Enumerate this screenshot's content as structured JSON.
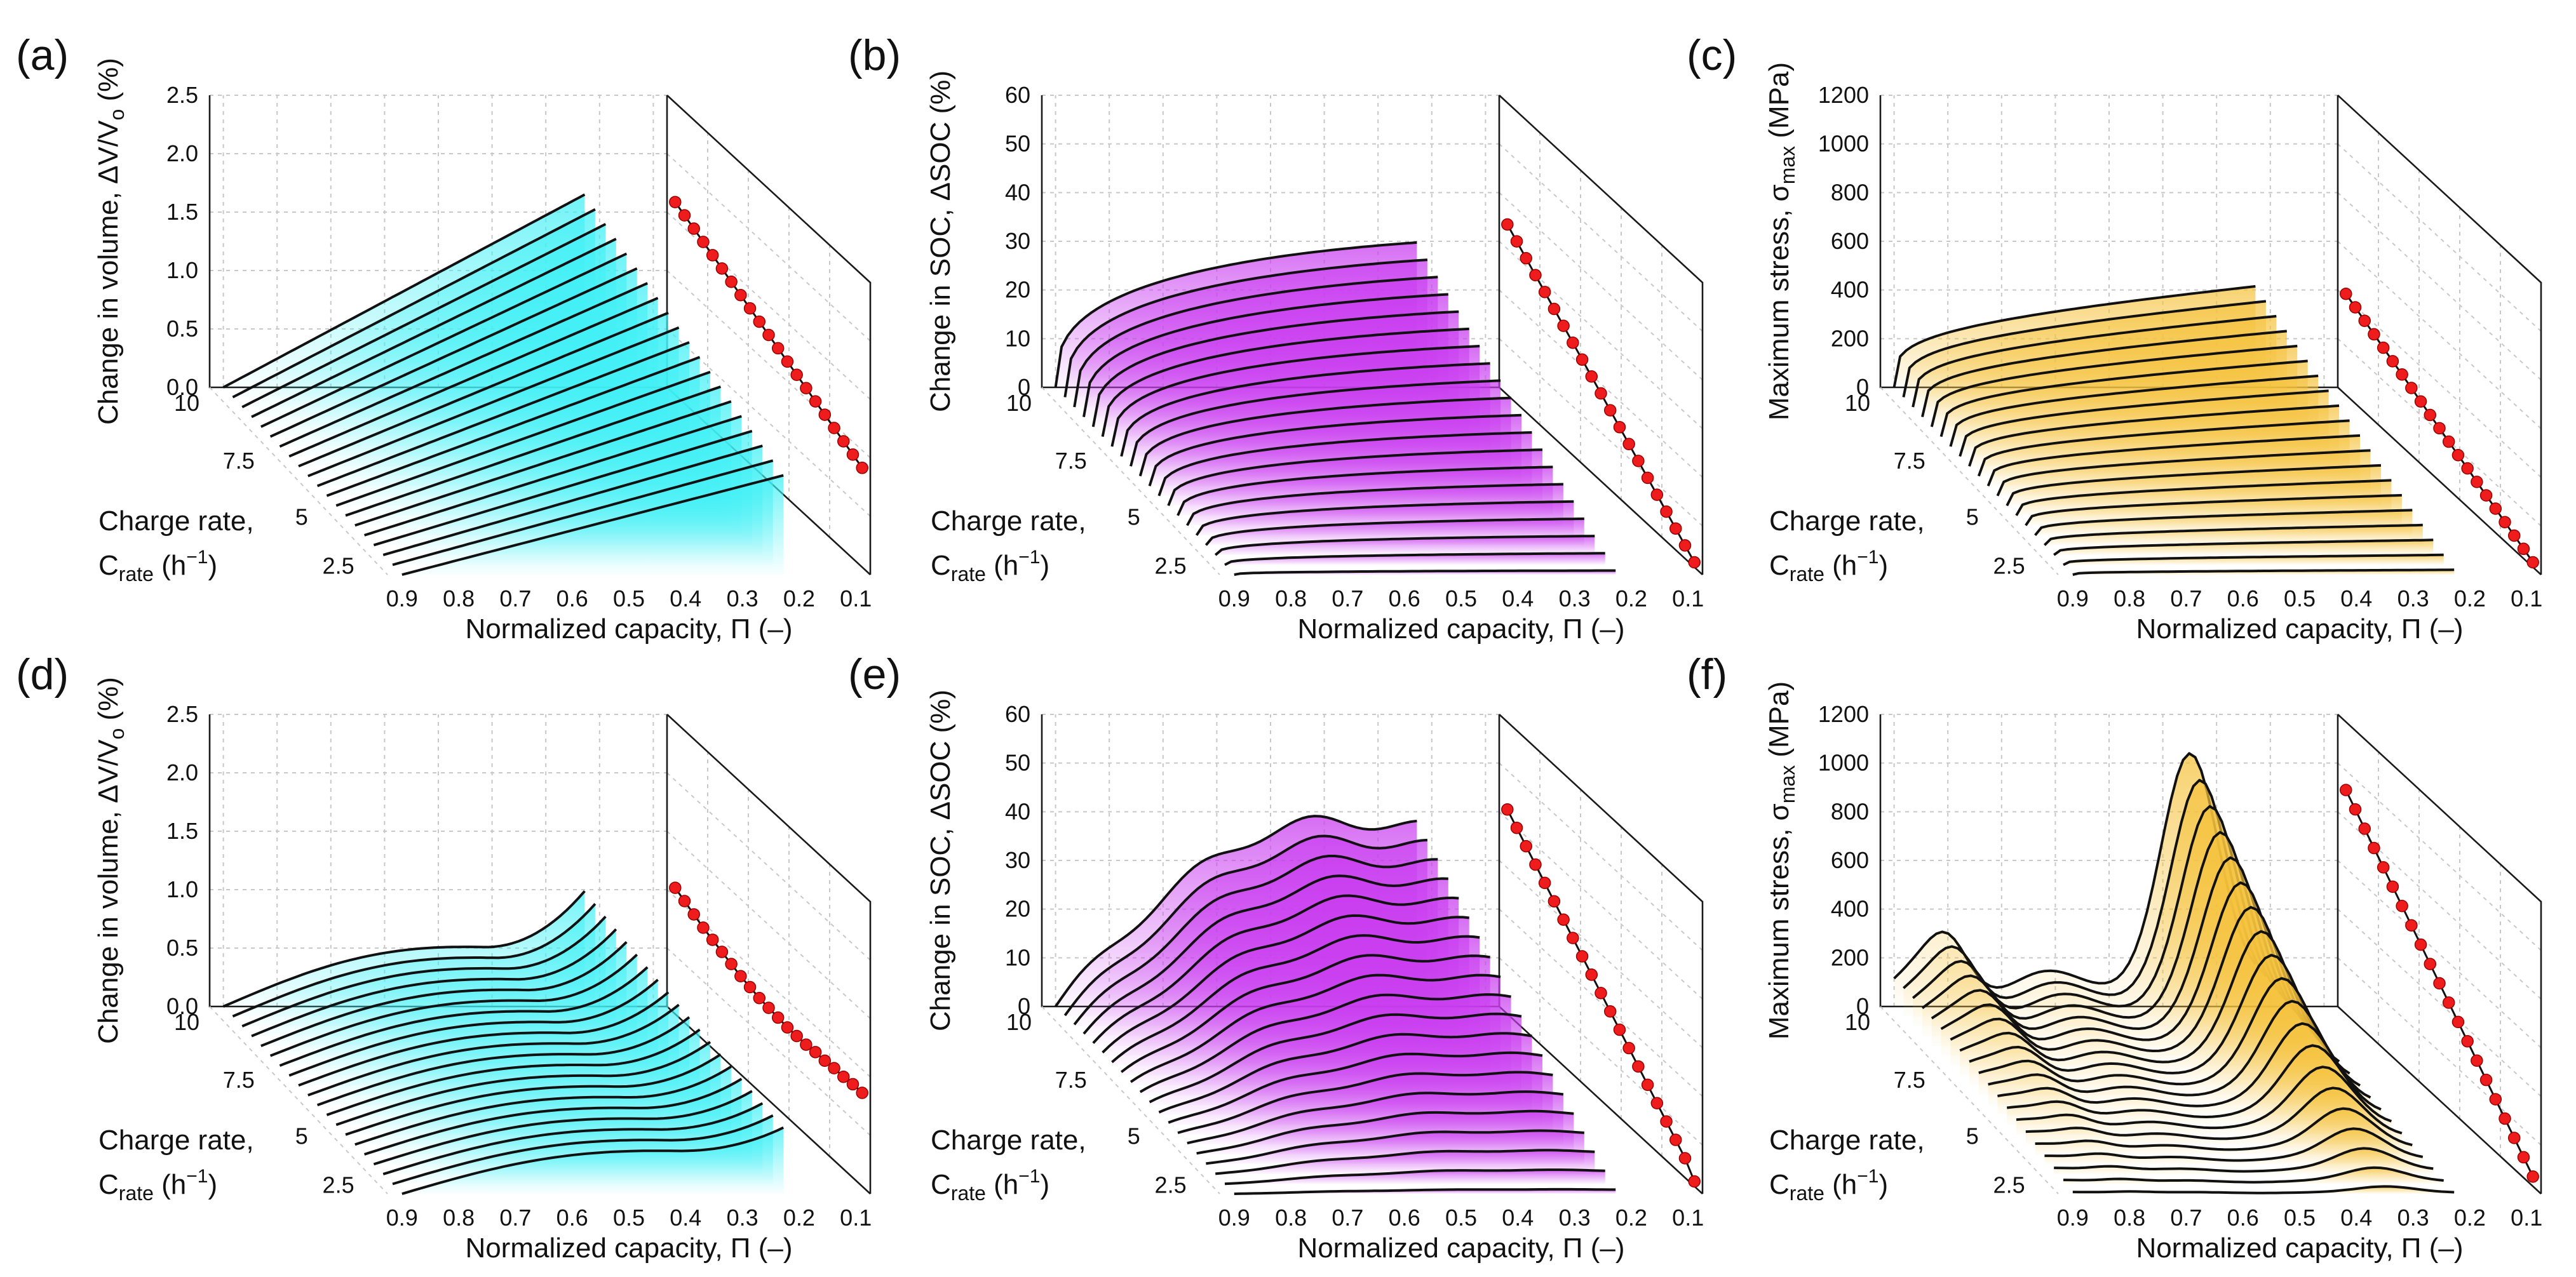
{
  "chart_data": [
    {
      "id": "a",
      "label": "(a)",
      "type": "surface3d",
      "zlabel": "Change in volume, ΔV/V",
      "zlabel_sub": "o",
      "zlabel_tail": " (%)",
      "zticks": [
        "0.0",
        "0.5",
        "1.0",
        "1.5",
        "2.0",
        "2.5"
      ],
      "zlim": [
        0,
        2.5
      ],
      "xlabel": "Normalized capacity, Π (–)",
      "xticks": [
        "0.9",
        "0.8",
        "0.7",
        "0.6",
        "0.5",
        "0.4",
        "0.3",
        "0.2",
        "0.1"
      ],
      "ylabel_line1": "Charge rate,",
      "ylabel_line2_main": "C",
      "ylabel_line2_sub": "rate",
      "ylabel_line2_tail": " (h",
      "ylabel_line2_sup": "−1",
      "ylabel_line2_end": ")",
      "yticks": [
        "10",
        "7.5",
        "5",
        "2.5"
      ],
      "fill": "#3ff0f5",
      "profile": "linear",
      "amplitude": [
        1.65,
        0.85
      ],
      "proj_values": [
        1.65,
        1.61,
        1.57,
        1.53,
        1.49,
        1.45,
        1.41,
        1.37,
        1.33,
        1.29,
        1.25,
        1.21,
        1.17,
        1.13,
        1.09,
        1.05,
        1.01,
        0.97,
        0.93,
        0.89,
        0.85
      ]
    },
    {
      "id": "b",
      "label": "(b)",
      "type": "surface3d",
      "zlabel": "Change in SOC, ΔSOC (%)",
      "zlabel_sub": "",
      "zlabel_tail": "",
      "zticks": [
        "0",
        "10",
        "20",
        "30",
        "40",
        "50",
        "60"
      ],
      "zlim": [
        0,
        60
      ],
      "xlabel": "Normalized capacity, Π (–)",
      "xticks": [
        "0.9",
        "0.8",
        "0.7",
        "0.6",
        "0.5",
        "0.4",
        "0.3",
        "0.2",
        "0.1"
      ],
      "ylabel_line1": "Charge rate,",
      "ylabel_line2_main": "C",
      "ylabel_line2_sub": "rate",
      "ylabel_line2_tail": " (h",
      "ylabel_line2_sup": "−1",
      "ylabel_line2_end": ")",
      "yticks": [
        "10",
        "7.5",
        "5",
        "2.5"
      ],
      "fill": "#c93cf0",
      "profile": "soc",
      "amplitude": [
        35,
        1
      ],
      "proj_values": [
        35,
        33.3,
        31.6,
        29.9,
        28.2,
        26.5,
        24.8,
        23.1,
        21.4,
        19.7,
        18,
        16.3,
        14.6,
        12.9,
        11.2,
        9.5,
        7.8,
        6.1,
        4.4,
        2.7,
        1
      ]
    },
    {
      "id": "c",
      "label": "(c)",
      "type": "surface3d",
      "zlabel": "Maximum stress, σ",
      "zlabel_sub": "max",
      "zlabel_tail": " (MPa)",
      "zticks": [
        "0",
        "200",
        "400",
        "600",
        "800",
        "1000",
        "1200"
      ],
      "zlim": [
        0,
        1200
      ],
      "xlabel": "Normalized capacity, Π (–)",
      "xticks": [
        "0.9",
        "0.8",
        "0.7",
        "0.6",
        "0.5",
        "0.4",
        "0.3",
        "0.2",
        "0.1"
      ],
      "ylabel_line1": "Charge rate,",
      "ylabel_line2_main": "C",
      "ylabel_line2_sub": "rate",
      "ylabel_line2_tail": " (h",
      "ylabel_line2_sup": "−1",
      "ylabel_line2_end": ")",
      "yticks": [
        "10",
        "7.5",
        "5",
        "2.5"
      ],
      "fill": "#f5c23c",
      "profile": "stress_mono",
      "amplitude": [
        415,
        20
      ],
      "proj_values": [
        415,
        395,
        375,
        355,
        335,
        315,
        296,
        276,
        256,
        236,
        217,
        197,
        177,
        158,
        138,
        118,
        99,
        79,
        59,
        40,
        20
      ]
    },
    {
      "id": "d",
      "label": "(d)",
      "type": "surface3d",
      "zlabel": "Change in volume, ΔV/V",
      "zlabel_sub": "o",
      "zlabel_tail": " (%)",
      "zticks": [
        "0.0",
        "0.5",
        "1.0",
        "1.5",
        "2.0",
        "2.5"
      ],
      "zlim": [
        0,
        2.5
      ],
      "xlabel": "Normalized capacity, Π (–)",
      "xticks": [
        "0.9",
        "0.8",
        "0.7",
        "0.6",
        "0.5",
        "0.4",
        "0.3",
        "0.2",
        "0.1"
      ],
      "ylabel_line1": "Charge rate,",
      "ylabel_line2_main": "C",
      "ylabel_line2_sub": "rate",
      "ylabel_line2_tail": " (h",
      "ylabel_line2_sup": "−1",
      "ylabel_line2_end": ")",
      "yticks": [
        "10",
        "7.5",
        "5",
        "2.5"
      ],
      "fill": "#3ff0f5",
      "profile": "volume_nonlinear",
      "amplitude": [
        1.08,
        0.78
      ],
      "proj_values": [
        1.08,
        1.04,
        1.0,
        0.96,
        0.93,
        0.9,
        0.87,
        0.84,
        0.82,
        0.8,
        0.79,
        0.78,
        0.77,
        0.77,
        0.77,
        0.78,
        0.78,
        0.79,
        0.79,
        0.8,
        0.8
      ]
    },
    {
      "id": "e",
      "label": "(e)",
      "type": "surface3d",
      "zlabel": "Change in SOC, ΔSOC (%)",
      "zlabel_sub": "",
      "zlabel_tail": "",
      "zticks": [
        "0",
        "10",
        "20",
        "30",
        "40",
        "50",
        "60"
      ],
      "zlim": [
        0,
        60
      ],
      "xlabel": "Normalized capacity, Π (–)",
      "xticks": [
        "0.9",
        "0.8",
        "0.7",
        "0.6",
        "0.5",
        "0.4",
        "0.3",
        "0.2",
        "0.1"
      ],
      "ylabel_line1": "Charge rate,",
      "ylabel_line2_main": "C",
      "ylabel_line2_sub": "rate",
      "ylabel_line2_tail": " (h",
      "ylabel_line2_sup": "−1",
      "ylabel_line2_end": ")",
      "yticks": [
        "10",
        "7.5",
        "5",
        "2.5"
      ],
      "fill": "#c93cf0",
      "profile": "soc_hump",
      "amplitude": [
        42,
        1
      ],
      "proj_values": [
        42,
        40,
        38,
        36,
        34,
        32,
        30,
        28,
        26,
        24,
        22,
        20,
        18,
        16,
        14,
        12,
        10,
        8,
        6,
        4,
        1
      ]
    },
    {
      "id": "f",
      "label": "(f)",
      "type": "surface3d",
      "zlabel": "Maximum stress, σ",
      "zlabel_sub": "max",
      "zlabel_tail": " (MPa)",
      "zticks": [
        "0",
        "200",
        "400",
        "600",
        "800",
        "1000",
        "1200"
      ],
      "zlim": [
        0,
        1200
      ],
      "xlabel": "Normalized capacity, Π (–)",
      "xticks": [
        "0.9",
        "0.8",
        "0.7",
        "0.6",
        "0.5",
        "0.4",
        "0.3",
        "0.2",
        "0.1"
      ],
      "ylabel_line1": "Charge rate,",
      "ylabel_line2_main": "C",
      "ylabel_line2_sub": "rate",
      "ylabel_line2_tail": " (h",
      "ylabel_line2_sup": "−1",
      "ylabel_line2_end": ")",
      "yticks": [
        "10",
        "7.5",
        "5",
        "2.5"
      ],
      "fill": "#f5c23c",
      "profile": "stress_peak",
      "amplitude": [
        920,
        40
      ],
      "proj_values": [
        920,
        876,
        832,
        788,
        744,
        700,
        656,
        612,
        568,
        524,
        480,
        436,
        392,
        348,
        304,
        260,
        216,
        172,
        128,
        84,
        40
      ]
    }
  ]
}
